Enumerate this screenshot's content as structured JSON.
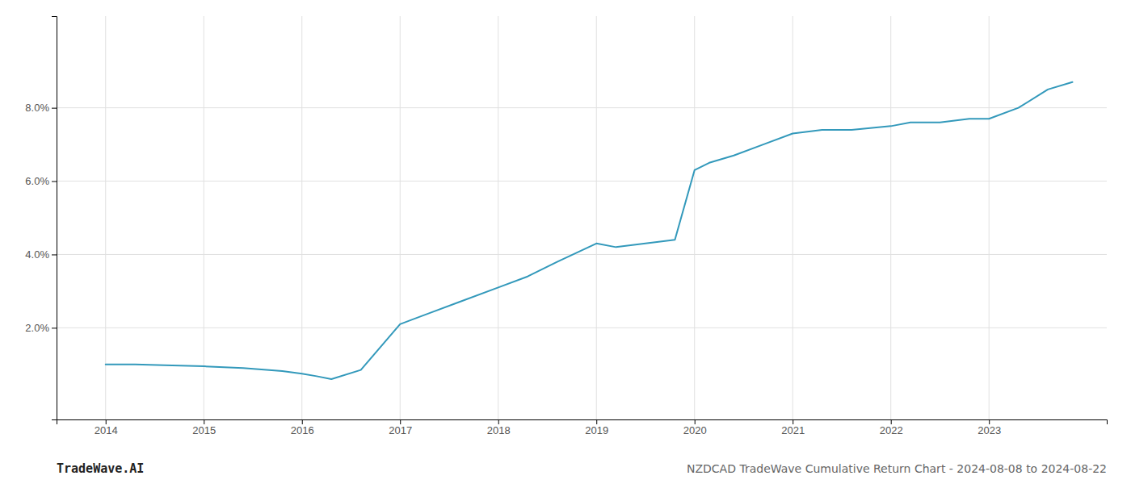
{
  "chart_data": {
    "type": "line",
    "title": "NZDCAD TradeWave Cumulative Return Chart - 2024-08-08 to 2024-08-22",
    "annotations": [
      "TradeWave.AI"
    ],
    "x": [
      2014.0,
      2014.3,
      2014.6,
      2015.0,
      2015.4,
      2015.8,
      2016.0,
      2016.15,
      2016.3,
      2016.6,
      2017.0,
      2017.3,
      2017.6,
      2018.0,
      2018.3,
      2018.6,
      2019.0,
      2019.2,
      2019.5,
      2019.8,
      2020.0,
      2020.15,
      2020.4,
      2020.7,
      2021.0,
      2021.3,
      2021.6,
      2022.0,
      2022.2,
      2022.5,
      2022.8,
      2023.0,
      2023.3,
      2023.6,
      2023.85
    ],
    "values": [
      0.01,
      0.01,
      0.0098,
      0.0095,
      0.009,
      0.0082,
      0.0075,
      0.0068,
      0.006,
      0.0085,
      0.021,
      0.024,
      0.027,
      0.031,
      0.034,
      0.038,
      0.043,
      0.042,
      0.043,
      0.044,
      0.063,
      0.065,
      0.067,
      0.07,
      0.073,
      0.074,
      0.074,
      0.075,
      0.076,
      0.076,
      0.077,
      0.077,
      0.08,
      0.085,
      0.087
    ],
    "color": "#3399bb",
    "xlim": [
      2013.5,
      2024.2
    ],
    "xticks": [
      2014,
      2015,
      2016,
      2017,
      2018,
      2019,
      2020,
      2021,
      2022,
      2023
    ],
    "ylim": [
      -0.005,
      0.105
    ],
    "yticks": [
      {
        "value": 0.02,
        "label": "2.0%"
      },
      {
        "value": 0.04,
        "label": "4.0%"
      },
      {
        "value": 0.06,
        "label": "6.0%"
      },
      {
        "value": 0.08,
        "label": "8.0%"
      }
    ],
    "grid": true
  }
}
